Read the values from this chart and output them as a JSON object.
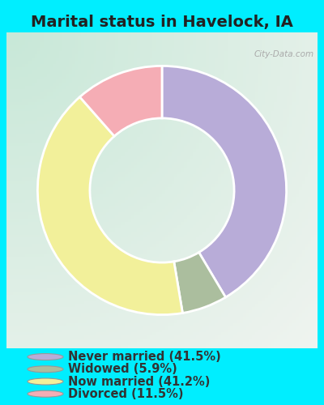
{
  "title": "Marital status in Havelock, IA",
  "slices": [
    41.5,
    5.9,
    41.2,
    11.5
  ],
  "labels": [
    "Never married (41.5%)",
    "Widowed (5.9%)",
    "Now married (41.2%)",
    "Divorced (11.5%)"
  ],
  "colors": [
    "#b8acd8",
    "#abbe9e",
    "#f2f09a",
    "#f5adb5"
  ],
  "startangle": 90,
  "outer_bg": "#00eeff",
  "title_fontsize": 14,
  "legend_fontsize": 10.5,
  "watermark": "City-Data.com",
  "title_color": "#222222",
  "legend_text_color": "#333333",
  "chart_bg_left": "#c8e8d8",
  "chart_bg_right": "#f0f4e8"
}
